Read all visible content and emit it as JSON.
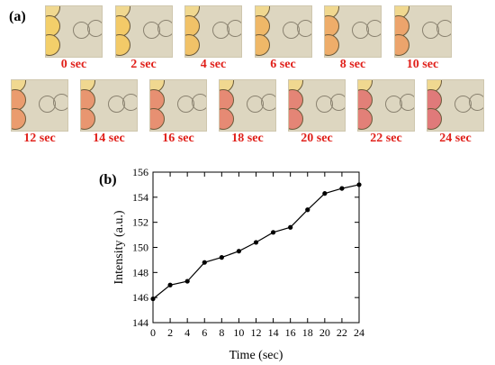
{
  "panel_a": {
    "label": "(a)",
    "frames": [
      {
        "caption": "0 sec",
        "tint": "#f3cf6a"
      },
      {
        "caption": "2 sec",
        "tint": "#f3ca68"
      },
      {
        "caption": "4 sec",
        "tint": "#f1c268"
      },
      {
        "caption": "6 sec",
        "tint": "#efb868"
      },
      {
        "caption": "8 sec",
        "tint": "#eead6a"
      },
      {
        "caption": "10 sec",
        "tint": "#eca46c"
      },
      {
        "caption": "12 sec",
        "tint": "#ea9c6e"
      },
      {
        "caption": "14 sec",
        "tint": "#e89670"
      },
      {
        "caption": "16 sec",
        "tint": "#e79072"
      },
      {
        "caption": "18 sec",
        "tint": "#e68a74"
      },
      {
        "caption": "20 sec",
        "tint": "#e48576"
      },
      {
        "caption": "22 sec",
        "tint": "#e28078"
      },
      {
        "caption": "24 sec",
        "tint": "#e07a7a"
      }
    ]
  },
  "panel_b": {
    "label": "(b)"
  },
  "chart_data": {
    "type": "line",
    "title": "",
    "xlabel": "Time (sec)",
    "ylabel": "Intensity (a.u.)",
    "xlim": [
      0,
      24
    ],
    "ylim": [
      144,
      156
    ],
    "xticks": [
      0,
      2,
      4,
      6,
      8,
      10,
      12,
      14,
      16,
      18,
      20,
      22,
      24
    ],
    "yticks": [
      144,
      146,
      148,
      150,
      152,
      154,
      156
    ],
    "grid": false,
    "series": [
      {
        "x": [
          0,
          2,
          4,
          6,
          8,
          10,
          12,
          14,
          16,
          18,
          20,
          22,
          24
        ],
        "values": [
          145.9,
          147.0,
          147.3,
          148.8,
          149.2,
          149.7,
          150.4,
          151.2,
          151.6,
          153.0,
          154.3,
          154.7,
          155.0
        ]
      }
    ],
    "line_color": "#000000",
    "marker": "filled-circle"
  }
}
